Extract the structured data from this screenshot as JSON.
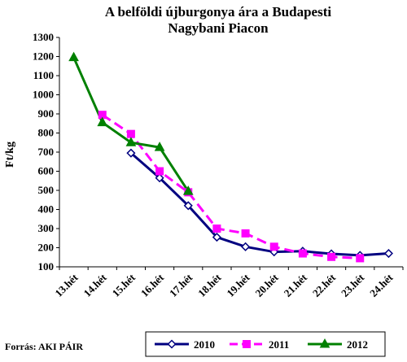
{
  "chart_data": {
    "type": "line",
    "title_lines": [
      "A belföldi újburgonya ára a Budapesti",
      "Nagybani Piacon"
    ],
    "ylabel": "Ft/kg",
    "xlabel": "",
    "ylim": [
      100,
      1300
    ],
    "ystep": 100,
    "categories": [
      "13.hét",
      "14.hét",
      "15.hét",
      "16.hét",
      "17.hét",
      "18.hét",
      "19.hét",
      "20.hét",
      "21.hét",
      "22.hét",
      "23.hét",
      "24.hét"
    ],
    "series": [
      {
        "name": "2010",
        "color": "#000080",
        "marker": "diamond",
        "dash": "none",
        "values": [
          null,
          null,
          695,
          565,
          420,
          255,
          205,
          178,
          182,
          168,
          160,
          170
        ]
      },
      {
        "name": "2011",
        "color": "#ff00ff",
        "marker": "square",
        "dash": "dashed",
        "values": [
          null,
          895,
          795,
          600,
          490,
          300,
          275,
          205,
          170,
          152,
          145,
          null
        ]
      },
      {
        "name": "2012",
        "color": "#008000",
        "marker": "triangle",
        "dash": "none",
        "values": [
          1195,
          855,
          750,
          725,
          495,
          null,
          null,
          null,
          null,
          null,
          null,
          null
        ]
      }
    ],
    "grid": false,
    "legend_position": "bottom-right"
  },
  "source": "Forrás: AKI PÁIR"
}
